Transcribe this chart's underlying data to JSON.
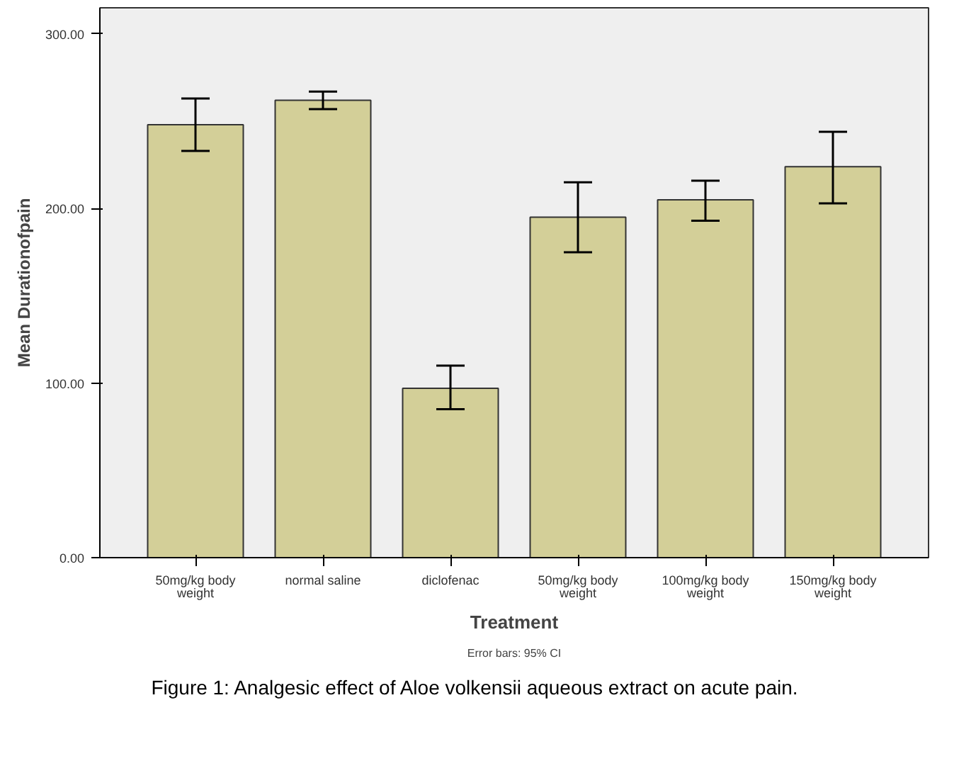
{
  "chart_data": {
    "type": "bar",
    "xlabel": "Treatment",
    "ylabel": "Mean Durationofpain",
    "categories": [
      "50mg/kg body\nweight",
      "normal saline",
      "diclofenac",
      "50mg/kg body\nweight",
      "100mg/kg body\nweight",
      "150mg/kg body\nweight"
    ],
    "values": [
      248,
      262,
      97,
      195,
      205,
      224
    ],
    "errors": [
      [
        233,
        263
      ],
      [
        257,
        267
      ],
      [
        85,
        110
      ],
      [
        175,
        215
      ],
      [
        193,
        216
      ],
      [
        203,
        244
      ]
    ],
    "color": "#d3cf98",
    "ylim": [
      0,
      315
    ],
    "yticks": [
      {
        "value": 0,
        "label": "0.00"
      },
      {
        "value": 100,
        "label": "100.00"
      },
      {
        "value": 200,
        "label": "200.00"
      },
      {
        "value": 300,
        "label": "300.00"
      }
    ],
    "annotations": [
      "Error bars: 95% CI",
      "Figure 1: Analgesic effect of Aloe volkensii aqueous extract on acute pain."
    ]
  }
}
